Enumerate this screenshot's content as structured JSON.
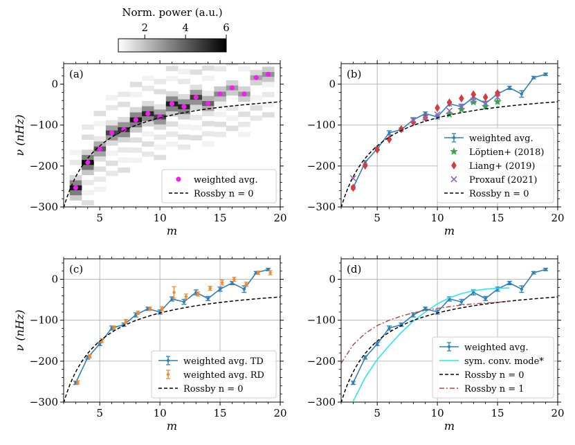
{
  "colorbar": {
    "title": "Norm. power (a.u.)",
    "range": [
      0.7,
      6
    ],
    "ticks": [
      2,
      4,
      6
    ],
    "tick_labels": [
      "2",
      "4",
      "6"
    ]
  },
  "chart_data": [
    {
      "id": "a",
      "type": "heatmap",
      "panel_label": "(a)",
      "xlabel": "m",
      "ylabel": "ν (nHz)",
      "xlim": [
        2,
        20
      ],
      "ylim": [
        -300,
        50
      ],
      "xticks": [
        5,
        10,
        15,
        20
      ],
      "yticks": [
        -300,
        -200,
        -100,
        0
      ],
      "ytick_labels": [
        "−300",
        "−200",
        "−100",
        "0"
      ],
      "grid": false,
      "legend_position": "lower-right",
      "legend": [
        "weighted avg.",
        "Rossby n = 0"
      ],
      "peak_power": [
        5.5,
        5.8,
        4.2,
        4.6,
        5.0,
        5.5,
        5.2,
        4.6,
        5.4,
        5.2,
        4.8,
        4.0,
        3.2,
        2.8,
        2.8,
        2.6,
        3.0
      ],
      "series": [
        {
          "name": "weighted avg.",
          "style": "magenta-points",
          "x": [
            3,
            4,
            5,
            6,
            7,
            8,
            9,
            10,
            11,
            12,
            13,
            14,
            15,
            16,
            17,
            18,
            19
          ],
          "y": [
            -253,
            -191,
            -158,
            -119,
            -111,
            -87,
            -72,
            -80,
            -48,
            -55,
            -32,
            -47,
            -24,
            -9,
            -24,
            16,
            24
          ]
        },
        {
          "name": "Rossby n = 0",
          "style": "dashed-black",
          "formula": "-2*453.1/(m+1)"
        }
      ]
    },
    {
      "id": "b",
      "type": "line",
      "panel_label": "(b)",
      "xlabel": "m",
      "ylabel": "",
      "xlim": [
        2,
        20
      ],
      "ylim": [
        -300,
        50
      ],
      "xticks": [
        5,
        10,
        15,
        20
      ],
      "yticks": [
        -300,
        -200,
        -100,
        0
      ],
      "ytick_labels": [
        "−300",
        "−200",
        "−100",
        "0"
      ],
      "grid": true,
      "legend_position": "lower-right",
      "legend": [
        "weighted avg.",
        "Löptien+ (2018)",
        "Liang+ (2019)",
        "Proxauf (2021)",
        "Rossby n = 0"
      ],
      "series": [
        {
          "name": "weighted avg.",
          "style": "line-errorbar",
          "x": [
            3,
            4,
            5,
            6,
            7,
            8,
            9,
            10,
            11,
            12,
            13,
            14,
            15,
            16,
            17,
            18,
            19
          ],
          "y": [
            -253,
            -191,
            -158,
            -119,
            -111,
            -87,
            -72,
            -80,
            -48,
            -55,
            -32,
            -47,
            -24,
            -9,
            -24,
            16,
            24
          ],
          "err": [
            4,
            4,
            4,
            5,
            4,
            5,
            4,
            5,
            5,
            6,
            6,
            5,
            5,
            4,
            8,
            3,
            3
          ]
        },
        {
          "name": "Löptien+ (2018)",
          "style": "green-star",
          "x": [
            11,
            12,
            13,
            14,
            15
          ],
          "y": [
            -74,
            -62,
            -44,
            -55,
            -43
          ]
        },
        {
          "name": "Liang+ (2019)",
          "style": "red-diamond",
          "x": [
            3,
            4,
            5,
            6,
            7,
            8,
            9,
            10,
            11,
            12,
            13,
            14,
            15
          ],
          "y": [
            -253,
            -199,
            -160,
            -135,
            -110,
            -93,
            -82,
            -58,
            -45,
            -35,
            -25,
            -32,
            -22
          ]
        },
        {
          "name": "Proxauf (2021)",
          "style": "purple-x",
          "x": [
            3,
            8,
            9,
            10,
            11,
            12,
            13,
            14,
            15
          ],
          "y": [
            -230,
            -88,
            -82,
            -74,
            -65,
            -55,
            -40,
            -47,
            -32
          ]
        },
        {
          "name": "Rossby n = 0",
          "style": "dashed-black",
          "formula": "-2*453.1/(m+1)"
        }
      ]
    },
    {
      "id": "c",
      "type": "line",
      "panel_label": "(c)",
      "xlabel": "m",
      "ylabel": "ν (nHz)",
      "xlim": [
        2,
        20
      ],
      "ylim": [
        -300,
        50
      ],
      "xticks": [
        5,
        10,
        15,
        20
      ],
      "yticks": [
        -300,
        -200,
        -100,
        0
      ],
      "ytick_labels": [
        "−300",
        "−200",
        "−100",
        "0"
      ],
      "grid": true,
      "legend_position": "lower-right",
      "legend": [
        "weighted avg. TD",
        "weighted avg. RD",
        "Rossby n = 0"
      ],
      "series": [
        {
          "name": "weighted avg. TD",
          "style": "line-errorbar",
          "x": [
            3,
            4,
            5,
            6,
            7,
            8,
            9,
            10,
            11,
            12,
            13,
            14,
            15,
            16,
            17,
            18,
            19
          ],
          "y": [
            -253,
            -191,
            -158,
            -119,
            -111,
            -87,
            -72,
            -80,
            -48,
            -55,
            -32,
            -47,
            -24,
            -9,
            -24,
            16,
            24
          ],
          "err": [
            4,
            4,
            4,
            5,
            4,
            5,
            4,
            5,
            5,
            6,
            6,
            5,
            5,
            4,
            8,
            3,
            3
          ]
        },
        {
          "name": "weighted avg. RD",
          "style": "orange-errorbar",
          "x": [
            3,
            4,
            5,
            6,
            7,
            8,
            9,
            10,
            11,
            12,
            13,
            14,
            15,
            16,
            17,
            18,
            19
          ],
          "y": [
            -252,
            -188,
            -150,
            -118,
            -103,
            -82,
            -72,
            -72,
            -32,
            -42,
            -36,
            -22,
            -8,
            0,
            -12,
            16,
            16
          ],
          "err": [
            4,
            4,
            5,
            4,
            5,
            4,
            4,
            5,
            14,
            6,
            5,
            5,
            6,
            5,
            5,
            4,
            5
          ]
        },
        {
          "name": "Rossby n = 0",
          "style": "dashed-black",
          "formula": "-2*453.1/(m+1)"
        }
      ]
    },
    {
      "id": "d",
      "type": "line",
      "panel_label": "(d)",
      "xlabel": "m",
      "ylabel": "",
      "xlim": [
        2,
        20
      ],
      "ylim": [
        -300,
        50
      ],
      "xticks": [
        5,
        10,
        15,
        20
      ],
      "yticks": [
        -300,
        -200,
        -100,
        0
      ],
      "ytick_labels": [
        "−300",
        "−200",
        "−100",
        "0"
      ],
      "grid": true,
      "legend_position": "lower-right",
      "legend": [
        "weighted avg.",
        "sym. conv. mode*",
        "Rossby n = 0",
        "Rossby n = 1"
      ],
      "series": [
        {
          "name": "weighted avg.",
          "style": "line-errorbar",
          "x": [
            3,
            4,
            5,
            6,
            7,
            8,
            9,
            10,
            11,
            12,
            13,
            14,
            15,
            16,
            17,
            18,
            19
          ],
          "y": [
            -253,
            -191,
            -158,
            -119,
            -111,
            -87,
            -72,
            -80,
            -48,
            -55,
            -32,
            -47,
            -24,
            -9,
            -24,
            16,
            24
          ],
          "err": [
            4,
            4,
            4,
            5,
            4,
            5,
            4,
            5,
            5,
            6,
            6,
            5,
            5,
            4,
            8,
            3,
            3
          ]
        },
        {
          "name": "sym. conv. mode*",
          "style": "cyan-line",
          "x": [
            3,
            4,
            5,
            6,
            7,
            8,
            9,
            10,
            11,
            12,
            13,
            14,
            15,
            16
          ],
          "y": [
            -298,
            -240,
            -196,
            -162,
            -130,
            -102,
            -80,
            -60,
            -45,
            -35,
            -28,
            -24,
            -22,
            -21
          ]
        },
        {
          "name": "Rossby n = 0",
          "style": "dashed-black",
          "formula": "-2*453.1/(m+1)"
        },
        {
          "name": "Rossby n = 1",
          "style": "brown-dashdot",
          "x": [
            2,
            3,
            4,
            5,
            6,
            7,
            8,
            9,
            10,
            11,
            12,
            13,
            14,
            15,
            16
          ],
          "y": [
            -205,
            -160,
            -132,
            -113,
            -100,
            -90,
            -82,
            -76,
            -71,
            -67,
            -63,
            -60,
            -58,
            -56,
            -54
          ]
        }
      ]
    }
  ],
  "colors": {
    "blue": "#2f7fb8",
    "orange": "#f28a2a",
    "green": "#33a84a",
    "red": "#d63a3a",
    "purple": "#9467bd",
    "magenta": "#f01ef0",
    "cyan": "#22e8f0",
    "brown": "#b0443c",
    "grid": "#b0b0b0"
  }
}
